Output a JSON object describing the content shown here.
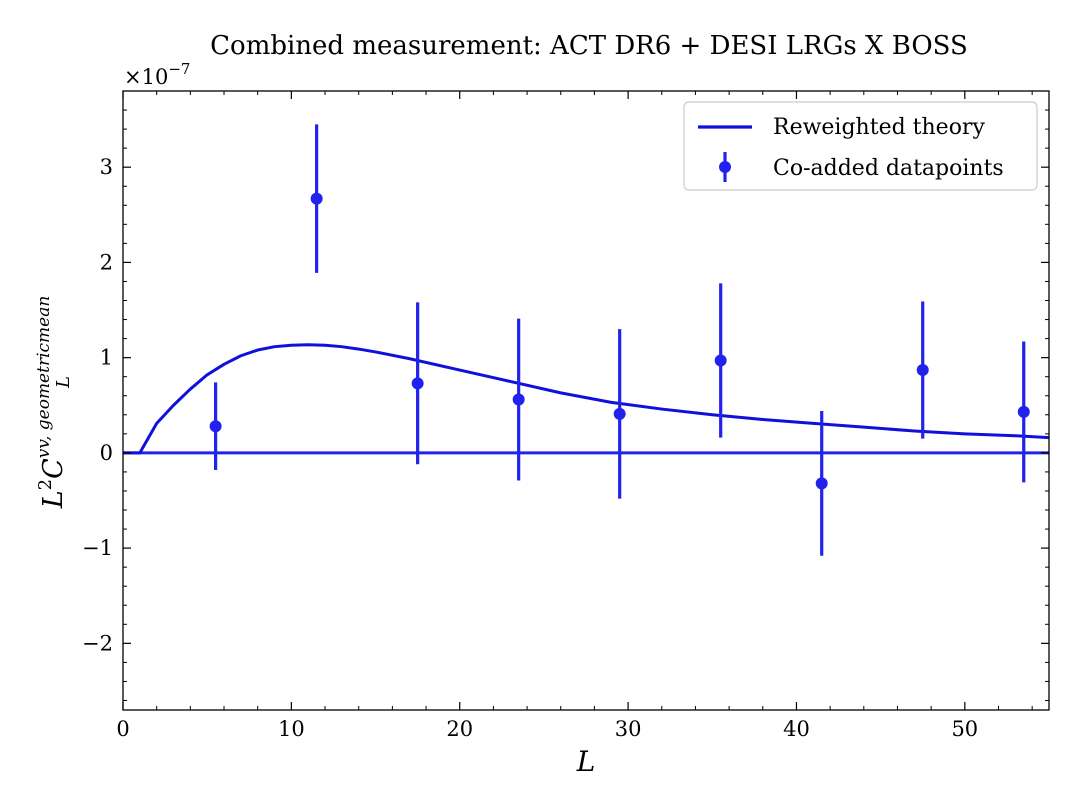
{
  "chart_data": {
    "type": "scatter",
    "title": "Combined measurement: ACT DR6 + DESI LRGs X BOSS",
    "xlabel": "L",
    "ylabel": {
      "base": "L",
      "sup1": "2",
      "main": "C",
      "sub": "L",
      "sup2": "vv, geometricmean"
    },
    "y_scale_label": {
      "base": "×10",
      "exp": "−7"
    },
    "xlim": [
      0,
      55
    ],
    "ylim": [
      -2.7,
      3.8
    ],
    "y_scale": 1e-07,
    "x_ticks": [
      0,
      10,
      20,
      30,
      40,
      50
    ],
    "x_tick_labels": [
      "0",
      "10",
      "20",
      "30",
      "40",
      "50"
    ],
    "y_ticks": [
      -2,
      -1,
      0,
      1,
      2,
      3
    ],
    "y_tick_labels": [
      "−2",
      "−1",
      "0",
      "1",
      "2",
      "3"
    ],
    "grid": false,
    "legend_position": "top-right",
    "color": "#2222ee",
    "series": [
      {
        "name": "Reweighted theory",
        "kind": "line",
        "color": "#1010dd",
        "x": [
          0,
          1,
          2,
          3,
          4,
          5,
          6,
          7,
          8,
          9,
          10,
          11,
          12,
          13,
          14,
          15,
          17,
          20,
          23,
          26,
          29,
          32,
          35,
          38,
          41,
          44,
          47,
          50,
          53,
          55
        ],
        "y": [
          0,
          0,
          0.31,
          0.5,
          0.67,
          0.82,
          0.93,
          1.02,
          1.08,
          1.115,
          1.13,
          1.135,
          1.13,
          1.115,
          1.09,
          1.06,
          0.99,
          0.87,
          0.75,
          0.63,
          0.53,
          0.46,
          0.4,
          0.35,
          0.31,
          0.27,
          0.23,
          0.2,
          0.18,
          0.16
        ]
      },
      {
        "name": "Co-added datapoints",
        "kind": "errorbar",
        "color": "#2222ee",
        "x": [
          5.5,
          11.5,
          17.5,
          23.5,
          29.5,
          35.5,
          41.5,
          47.5,
          53.5
        ],
        "y": [
          0.28,
          2.67,
          0.73,
          0.56,
          0.41,
          0.97,
          -0.32,
          0.87,
          0.43
        ],
        "yerr": [
          0.46,
          0.78,
          0.85,
          0.85,
          0.89,
          0.81,
          0.76,
          0.72,
          0.74
        ]
      }
    ],
    "hline": {
      "y": 0,
      "color": "#2222ee"
    }
  }
}
